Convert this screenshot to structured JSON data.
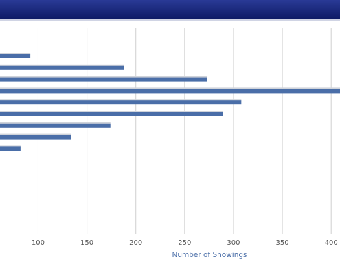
{
  "chart_data": {
    "type": "bar",
    "orientation": "horizontal",
    "x_label": "Number of Showings",
    "values": [
      92,
      188,
      273,
      420,
      308,
      289,
      174,
      134,
      82
    ],
    "color": "#4a6ea8",
    "xlim": [
      61,
      409
    ],
    "xticks": [
      100,
      150,
      200,
      250,
      300,
      350,
      400
    ],
    "grid": true
  }
}
